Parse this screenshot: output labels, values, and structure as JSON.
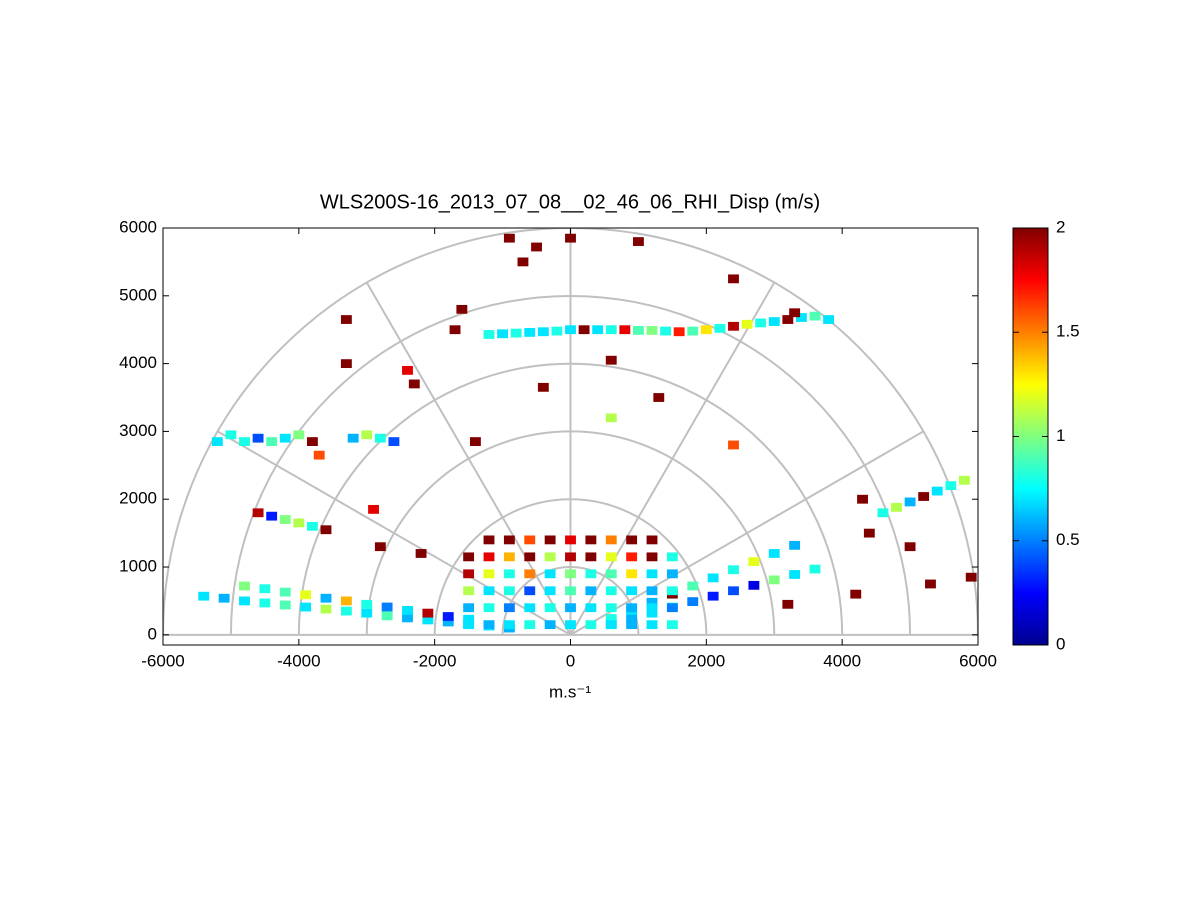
{
  "chart_data": {
    "type": "polar-cells",
    "title": "WLS200S-16_2013_07_08__02_46_06_RHI_Disp (m/s)",
    "xlabel": "m.s⁻¹",
    "xlim": [
      -6000,
      6000
    ],
    "ylim": [
      -150,
      6000
    ],
    "xticks": [
      -6000,
      -4000,
      -2000,
      0,
      2000,
      4000,
      6000
    ],
    "yticks": [
      0,
      1000,
      2000,
      3000,
      4000,
      5000,
      6000
    ],
    "polar_rings": [
      1000,
      2000,
      3000,
      4000,
      5000,
      6000
    ],
    "polar_spokes": [
      0,
      30,
      60,
      90,
      120,
      150,
      180
    ],
    "colormap": "jet",
    "colorbar": {
      "lim": [
        0,
        2
      ],
      "ticks": [
        0,
        0.5,
        1,
        1.5,
        2
      ]
    },
    "x": [
      -1200,
      -1000,
      -800,
      -600,
      -400,
      -200,
      0,
      200,
      400,
      600,
      800,
      1000,
      1200,
      1400,
      1600,
      1800,
      2000,
      2200,
      2400,
      2600,
      2800,
      3000,
      3200,
      3400,
      3600,
      3800,
      -5200,
      -5000,
      -4800,
      -4600,
      -4400,
      -4200,
      -4000,
      -3800,
      -3200,
      -3000,
      -2800,
      -2600,
      -4600,
      -4400,
      -4200,
      -4000,
      -3800,
      -3600,
      -5400,
      -5100,
      -4800,
      -4500,
      -4200,
      -3900,
      -3600,
      -3300,
      -3000,
      -2700,
      -2400,
      -2100,
      -1800,
      -1500,
      -1200,
      -900,
      -4800,
      -4500,
      -4200,
      -3900,
      -3600,
      -3300,
      -3000,
      -2700,
      -2400,
      -2100,
      -1800,
      -1500,
      600,
      900,
      1200,
      1500,
      1800,
      2100,
      2400,
      2700,
      3000,
      3300,
      3600,
      600,
      900,
      1200,
      1500,
      1800,
      2100,
      2400,
      2700,
      3000,
      3300,
      4600,
      4800,
      5000,
      5200,
      5400,
      5600,
      5800,
      -1500,
      -1200,
      -900,
      -600,
      -300,
      0,
      300,
      600,
      900,
      1200,
      1500,
      -1500,
      -1200,
      -900,
      -600,
      -300,
      0,
      300,
      600,
      900,
      1200,
      1500,
      -1500,
      -1200,
      -900,
      -600,
      -300,
      0,
      300,
      600,
      900,
      1200,
      1500,
      -1500,
      -1200,
      -900,
      -600,
      -300,
      0,
      300,
      600,
      900,
      1200,
      1500,
      -1500,
      -1200,
      -900,
      -600,
      -300,
      0,
      300,
      600,
      900,
      1200,
      1500,
      -1200,
      -900,
      -600,
      -300,
      0,
      300,
      600,
      900,
      1200,
      -900,
      -500,
      -700,
      0,
      1000,
      2400,
      -1600,
      -1700,
      600,
      -400,
      -1400,
      1300,
      3300,
      -3300,
      -3300,
      -3700,
      -2900,
      -2800,
      -2200,
      4300,
      4400,
      3200,
      4200,
      5000,
      5300,
      5900,
      2400,
      600,
      -2400,
      -2300
    ],
    "y": [
      4430,
      4440,
      4450,
      4460,
      4470,
      4480,
      4500,
      4500,
      4500,
      4500,
      4500,
      4490,
      4490,
      4480,
      4470,
      4480,
      4500,
      4520,
      4550,
      4580,
      4600,
      4620,
      4650,
      4680,
      4700,
      4650,
      2850,
      2950,
      2850,
      2900,
      2850,
      2900,
      2950,
      2850,
      2900,
      2950,
      2900,
      2850,
      1800,
      1750,
      1700,
      1650,
      1600,
      1550,
      570,
      540,
      500,
      470,
      440,
      410,
      380,
      350,
      320,
      280,
      250,
      220,
      190,
      160,
      130,
      100,
      720,
      680,
      630,
      590,
      540,
      500,
      450,
      410,
      360,
      320,
      270,
      230,
      160,
      240,
      320,
      410,
      490,
      570,
      650,
      730,
      810,
      890,
      970,
      240,
      360,
      480,
      600,
      720,
      840,
      960,
      1080,
      1200,
      1320,
      1800,
      1880,
      1960,
      2040,
      2120,
      2200,
      2280,
      150,
      150,
      150,
      150,
      150,
      150,
      150,
      150,
      150,
      150,
      150,
      400,
      400,
      400,
      400,
      400,
      400,
      400,
      400,
      400,
      400,
      400,
      650,
      650,
      650,
      650,
      650,
      650,
      650,
      650,
      650,
      650,
      650,
      900,
      900,
      900,
      900,
      900,
      900,
      900,
      900,
      900,
      900,
      900,
      1150,
      1150,
      1150,
      1150,
      1150,
      1150,
      1150,
      1150,
      1150,
      1150,
      1150,
      1400,
      1400,
      1400,
      1400,
      1400,
      1400,
      1400,
      1400,
      1400,
      5850,
      5720,
      5500,
      5850,
      5800,
      5250,
      4800,
      4500,
      4050,
      3650,
      2850,
      3500,
      4750,
      4000,
      4650,
      2650,
      1850,
      1300,
      1200,
      2000,
      1500,
      450,
      600,
      1300,
      750,
      850,
      2800,
      3200,
      3900,
      3700
    ],
    "values": [
      0.8,
      0.7,
      0.8,
      0.7,
      0.7,
      0.8,
      0.7,
      2.0,
      0.7,
      0.8,
      1.8,
      0.9,
      1.0,
      0.8,
      1.7,
      0.9,
      1.3,
      0.8,
      1.9,
      1.2,
      0.8,
      0.7,
      2.0,
      0.7,
      0.9,
      0.7,
      0.7,
      0.8,
      0.8,
      0.4,
      0.9,
      0.7,
      1.0,
      2.0,
      0.6,
      1.1,
      0.8,
      0.4,
      1.9,
      0.3,
      1.0,
      1.1,
      0.8,
      2.0,
      0.7,
      0.6,
      0.7,
      0.8,
      0.9,
      0.7,
      1.1,
      0.8,
      0.7,
      0.9,
      0.6,
      0.7,
      0.6,
      0.7,
      0.7,
      0.6,
      1.0,
      0.8,
      0.9,
      1.2,
      0.6,
      1.4,
      0.8,
      0.5,
      0.7,
      1.9,
      0.3,
      0.7,
      0.7,
      0.6,
      0.7,
      0.8,
      0.5,
      0.3,
      0.4,
      0.2,
      1.0,
      0.7,
      0.8,
      0.8,
      0.7,
      0.6,
      2.0,
      0.9,
      0.7,
      0.8,
      1.2,
      0.7,
      0.6,
      0.8,
      1.1,
      0.6,
      2.0,
      0.7,
      0.8,
      1.1,
      0.7,
      0.6,
      0.7,
      0.8,
      0.6,
      0.7,
      0.8,
      0.7,
      0.6,
      0.7,
      0.8,
      0.6,
      0.8,
      0.5,
      0.7,
      0.8,
      0.6,
      0.7,
      0.8,
      0.6,
      0.7,
      0.5,
      1.1,
      0.7,
      0.8,
      0.4,
      0.7,
      0.9,
      0.6,
      0.8,
      0.7,
      0.6,
      0.8,
      1.9,
      1.2,
      0.8,
      1.5,
      0.7,
      1.0,
      0.8,
      0.9,
      1.3,
      0.7,
      0.6,
      2.0,
      1.8,
      1.4,
      2.0,
      1.1,
      1.9,
      2.0,
      1.2,
      1.7,
      2.0,
      0.8,
      2.0,
      2.0,
      1.6,
      2.0,
      1.8,
      2.0,
      1.5,
      2.0,
      2.0,
      2.0,
      2.0,
      2.0,
      2.0,
      2.0,
      2.0,
      2.0,
      2.0,
      2.0,
      2.0,
      2.0,
      2.0,
      2.0,
      2.0,
      2.0,
      1.6,
      1.8,
      2.0,
      2.0,
      2.0,
      2.0,
      2.0,
      2.0,
      2.0,
      2.0,
      2.0,
      1.6,
      1.1,
      1.8,
      2.0
    ]
  }
}
